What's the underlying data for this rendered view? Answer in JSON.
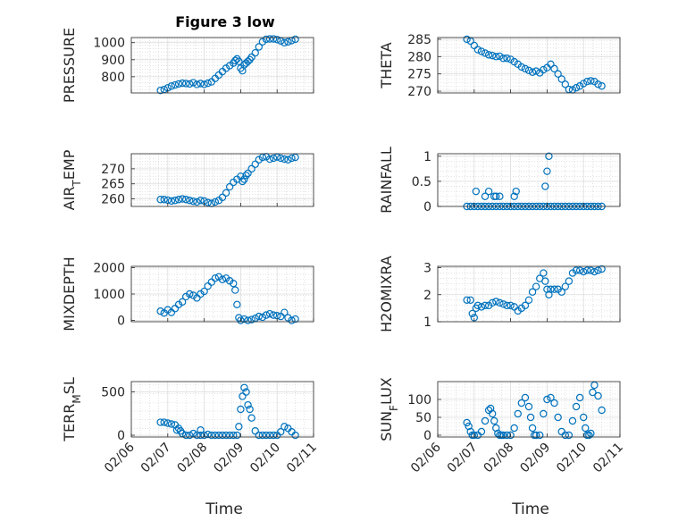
{
  "figure": {
    "title": "Figure 3 low",
    "marker_color": "#0072BD"
  },
  "chart_data": [
    {
      "type": "scatter",
      "id": "pressure",
      "ylabel": "PRESSURE",
      "ylabel_sub": "",
      "ylabel_main": "PRESSURE",
      "ylabel_tail": "",
      "ylim": [
        705,
        1030
      ],
      "yticks": [
        800,
        900,
        1000
      ],
      "ytick_labels": [
        "800",
        "900",
        "1000"
      ],
      "xlim": [
        0,
        5
      ],
      "xticks": [
        0,
        1,
        2,
        3,
        4,
        5
      ],
      "xtick_labels": [
        "02/06",
        "02/07",
        "02/08",
        "02/09",
        "02/10",
        "02/11"
      ],
      "show_xtick_labels": false,
      "x": [
        0.8,
        0.9,
        1.0,
        1.1,
        1.2,
        1.3,
        1.4,
        1.5,
        1.6,
        1.7,
        1.8,
        1.9,
        2.0,
        2.1,
        2.2,
        2.3,
        2.4,
        2.5,
        2.6,
        2.7,
        2.8,
        2.85,
        2.9,
        2.95,
        3.0,
        3.05,
        3.1,
        3.15,
        3.2,
        3.25,
        3.3,
        3.4,
        3.5,
        3.6,
        3.7,
        3.8,
        3.9,
        4.0,
        4.1,
        4.2,
        4.3,
        4.4,
        4.5
      ],
      "y": [
        720,
        725,
        735,
        745,
        752,
        758,
        762,
        760,
        758,
        765,
        755,
        760,
        755,
        762,
        770,
        790,
        810,
        830,
        850,
        865,
        880,
        895,
        905,
        890,
        850,
        835,
        870,
        880,
        890,
        900,
        915,
        940,
        975,
        1005,
        1020,
        1022,
        1022,
        1018,
        1010,
        1000,
        1005,
        1012,
        1020
      ]
    },
    {
      "type": "scatter",
      "id": "theta",
      "ylabel": "THETA",
      "ylabel_main": "THETA",
      "ylabel_sub": "",
      "ylabel_tail": "",
      "ylim": [
        269.5,
        285.5
      ],
      "yticks": [
        270,
        275,
        280,
        285
      ],
      "ytick_labels": [
        "270",
        "275",
        "280",
        "285"
      ],
      "xlim": [
        0,
        5
      ],
      "xticks": [
        0,
        1,
        2,
        3,
        4,
        5
      ],
      "xtick_labels": [
        "02/06",
        "02/07",
        "02/08",
        "02/09",
        "02/10",
        "02/11"
      ],
      "show_xtick_labels": false,
      "x": [
        0.8,
        0.9,
        1.0,
        1.1,
        1.2,
        1.3,
        1.4,
        1.5,
        1.6,
        1.7,
        1.8,
        1.9,
        2.0,
        2.1,
        2.2,
        2.3,
        2.4,
        2.5,
        2.6,
        2.7,
        2.8,
        2.9,
        3.0,
        3.1,
        3.2,
        3.3,
        3.4,
        3.5,
        3.6,
        3.7,
        3.8,
        3.9,
        4.0,
        4.1,
        4.2,
        4.3,
        4.4,
        4.5
      ],
      "y": [
        285,
        284.5,
        283.2,
        282,
        281.5,
        281,
        280.5,
        280.3,
        280,
        280.1,
        279.5,
        279.5,
        279.2,
        278.5,
        277.8,
        277,
        276.5,
        276,
        275.5,
        275.8,
        275.3,
        276.2,
        276.8,
        277.8,
        276.5,
        275,
        273.5,
        272,
        270.5,
        270.4,
        271,
        271.5,
        272.2,
        272.8,
        273,
        272.8,
        272,
        271.5
      ]
    },
    {
      "type": "scatter",
      "id": "airtemp",
      "ylabel": "AIR_TEMP",
      "ylabel_main": "AIR",
      "ylabel_sub": "T",
      "ylabel_tail": "EMP",
      "ylim": [
        257.5,
        275
      ],
      "yticks": [
        260,
        265,
        270
      ],
      "ytick_labels": [
        "260",
        "265",
        "270"
      ],
      "xlim": [
        0,
        5
      ],
      "xticks": [
        0,
        1,
        2,
        3,
        4,
        5
      ],
      "xtick_labels": [
        "02/06",
        "02/07",
        "02/08",
        "02/09",
        "02/10",
        "02/11"
      ],
      "show_xtick_labels": false,
      "x": [
        0.8,
        0.9,
        1.0,
        1.1,
        1.2,
        1.3,
        1.4,
        1.5,
        1.6,
        1.7,
        1.8,
        1.9,
        2.0,
        2.1,
        2.2,
        2.3,
        2.4,
        2.5,
        2.6,
        2.7,
        2.8,
        2.9,
        3.0,
        3.05,
        3.1,
        3.15,
        3.2,
        3.3,
        3.4,
        3.5,
        3.6,
        3.7,
        3.8,
        3.9,
        4.0,
        4.1,
        4.2,
        4.3,
        4.4,
        4.5
      ],
      "y": [
        259.8,
        259.8,
        259.6,
        259.3,
        259.5,
        259.8,
        260,
        259.8,
        259.5,
        259.2,
        259,
        259.5,
        259.3,
        258.8,
        258.5,
        259,
        259.5,
        260.5,
        262,
        264,
        265.5,
        266.5,
        267.5,
        265.8,
        266.5,
        267.8,
        268.5,
        270,
        271.5,
        273,
        273.8,
        274,
        273.2,
        273.5,
        273.9,
        273.5,
        273.2,
        273,
        273.5,
        273.8
      ]
    },
    {
      "type": "scatter",
      "id": "rainfall",
      "ylabel": "RAINFALL",
      "ylabel_main": "RAINFALL",
      "ylabel_sub": "",
      "ylabel_tail": "",
      "ylim": [
        0,
        1.05
      ],
      "yticks": [
        0,
        0.5,
        1
      ],
      "ytick_labels": [
        "0",
        "0.5",
        "1"
      ],
      "xlim": [
        0,
        5
      ],
      "xticks": [
        0,
        1,
        2,
        3,
        4,
        5
      ],
      "xtick_labels": [
        "02/06",
        "02/07",
        "02/08",
        "02/09",
        "02/10",
        "02/11"
      ],
      "show_xtick_labels": false,
      "x": [
        0.8,
        0.9,
        1.0,
        1.1,
        1.2,
        1.3,
        1.4,
        1.5,
        1.6,
        1.7,
        1.8,
        1.9,
        2.0,
        2.1,
        2.2,
        2.3,
        2.4,
        2.5,
        2.6,
        2.7,
        2.8,
        2.9,
        3.0,
        3.1,
        3.2,
        3.3,
        3.4,
        3.5,
        3.6,
        3.7,
        3.8,
        3.9,
        4.0,
        4.1,
        4.2,
        4.3,
        4.4,
        4.5,
        1.05,
        1.3,
        1.4,
        1.55,
        1.6,
        1.7,
        2.1,
        2.15,
        2.95,
        3.0,
        3.05
      ],
      "y": [
        0,
        0,
        0,
        0,
        0,
        0,
        0,
        0,
        0,
        0,
        0,
        0,
        0,
        0,
        0,
        0,
        0,
        0,
        0,
        0,
        0,
        0,
        0,
        0,
        0,
        0,
        0,
        0,
        0,
        0,
        0,
        0,
        0,
        0,
        0,
        0,
        0,
        0,
        0.3,
        0.2,
        0.3,
        0.2,
        0.2,
        0.2,
        0.2,
        0.3,
        0.4,
        0.7,
        1.0
      ]
    },
    {
      "type": "scatter",
      "id": "mixdepth",
      "ylabel": "MIXDEPTH",
      "ylabel_main": "MIXDEPTH",
      "ylabel_sub": "",
      "ylabel_tail": "",
      "ylim": [
        -50,
        2050
      ],
      "yticks": [
        0,
        1000,
        2000
      ],
      "ytick_labels": [
        "0",
        "1000",
        "2000"
      ],
      "xlim": [
        0,
        5
      ],
      "xticks": [
        0,
        1,
        2,
        3,
        4,
        5
      ],
      "xtick_labels": [
        "02/06",
        "02/07",
        "02/08",
        "02/09",
        "02/10",
        "02/11"
      ],
      "show_xtick_labels": false,
      "x": [
        0.8,
        0.9,
        1.0,
        1.1,
        1.2,
        1.3,
        1.4,
        1.5,
        1.6,
        1.7,
        1.8,
        1.9,
        2.0,
        2.1,
        2.2,
        2.3,
        2.4,
        2.5,
        2.6,
        2.7,
        2.8,
        2.85,
        2.9,
        2.95,
        3.0,
        3.1,
        3.2,
        3.3,
        3.4,
        3.5,
        3.6,
        3.7,
        3.8,
        3.9,
        4.0,
        4.1,
        4.2,
        4.3,
        4.4,
        4.5
      ],
      "y": [
        350,
        280,
        400,
        300,
        450,
        600,
        700,
        900,
        1000,
        950,
        850,
        1000,
        1100,
        1300,
        1450,
        1600,
        1650,
        1550,
        1600,
        1500,
        1400,
        1150,
        600,
        100,
        0,
        50,
        0,
        30,
        80,
        150,
        120,
        200,
        250,
        200,
        180,
        150,
        300,
        100,
        0,
        50
      ]
    },
    {
      "type": "scatter",
      "id": "h2omixra",
      "ylabel": "H2OMIXRA",
      "ylabel_main": "H2OMIXRA",
      "ylabel_sub": "",
      "ylabel_tail": "",
      "ylim": [
        1,
        3.05
      ],
      "yticks": [
        1,
        2,
        3
      ],
      "ytick_labels": [
        "1",
        "2",
        "3"
      ],
      "xlim": [
        0,
        5
      ],
      "xticks": [
        0,
        1,
        2,
        3,
        4,
        5
      ],
      "xtick_labels": [
        "02/06",
        "02/07",
        "02/08",
        "02/09",
        "02/10",
        "02/11"
      ],
      "show_xtick_labels": false,
      "x": [
        0.8,
        0.9,
        0.95,
        1.0,
        1.05,
        1.1,
        1.2,
        1.3,
        1.4,
        1.5,
        1.6,
        1.7,
        1.8,
        1.9,
        2.0,
        2.1,
        2.2,
        2.3,
        2.4,
        2.5,
        2.6,
        2.7,
        2.8,
        2.9,
        2.95,
        3.0,
        3.05,
        3.1,
        3.2,
        3.3,
        3.4,
        3.5,
        3.6,
        3.7,
        3.8,
        3.9,
        4.0,
        4.1,
        4.2,
        4.3,
        4.4,
        4.5
      ],
      "y": [
        1.8,
        1.8,
        1.3,
        1.15,
        1.5,
        1.6,
        1.55,
        1.6,
        1.6,
        1.7,
        1.75,
        1.7,
        1.65,
        1.6,
        1.6,
        1.55,
        1.4,
        1.5,
        1.6,
        1.8,
        2.1,
        2.3,
        2.6,
        2.8,
        2.5,
        2.2,
        2.0,
        2.2,
        2.2,
        2.2,
        2.1,
        2.3,
        2.5,
        2.8,
        2.9,
        2.9,
        2.85,
        2.9,
        2.9,
        2.85,
        2.9,
        2.95
      ]
    },
    {
      "type": "scatter",
      "id": "terrmsl",
      "ylabel": "TERR_MSL",
      "ylabel_main": "TERR",
      "ylabel_sub": "M",
      "ylabel_tail": "SL",
      "ylim": [
        -20,
        620
      ],
      "yticks": [
        0,
        500
      ],
      "ytick_labels": [
        "0",
        "500"
      ],
      "xlim": [
        0,
        5
      ],
      "xticks": [
        0,
        1,
        2,
        3,
        4,
        5
      ],
      "xtick_labels": [
        "02/06",
        "02/07",
        "02/08",
        "02/09",
        "02/10",
        "02/11"
      ],
      "show_xtick_labels": true,
      "x": [
        0.8,
        0.9,
        1.0,
        1.1,
        1.2,
        1.3,
        1.4,
        1.5,
        1.6,
        1.7,
        1.8,
        1.9,
        2.0,
        2.1,
        2.2,
        2.3,
        2.4,
        2.5,
        2.6,
        2.7,
        2.8,
        2.9,
        2.95,
        3.0,
        3.05,
        3.1,
        3.15,
        3.2,
        3.25,
        3.3,
        3.4,
        3.5,
        3.6,
        3.7,
        3.8,
        3.9,
        4.0,
        4.1,
        4.2,
        4.3,
        4.4,
        4.5,
        1.25,
        1.35,
        1.9
      ],
      "y": [
        150,
        150,
        140,
        130,
        120,
        80,
        20,
        0,
        0,
        20,
        0,
        0,
        0,
        10,
        0,
        0,
        0,
        0,
        0,
        0,
        0,
        0,
        100,
        300,
        450,
        550,
        500,
        350,
        300,
        200,
        50,
        0,
        0,
        0,
        0,
        0,
        0,
        40,
        100,
        80,
        40,
        0,
        60,
        50,
        60
      ]
    },
    {
      "type": "scatter",
      "id": "sunflux",
      "ylabel": "SUN_FLUX",
      "ylabel_main": "SUN",
      "ylabel_sub": "F",
      "ylabel_tail": "LUX",
      "ylim": [
        -5,
        150
      ],
      "yticks": [
        0,
        50,
        100
      ],
      "ytick_labels": [
        "0",
        "50",
        "100"
      ],
      "xlim": [
        0,
        5
      ],
      "xticks": [
        0,
        1,
        2,
        3,
        4,
        5
      ],
      "xtick_labels": [
        "02/06",
        "02/07",
        "02/08",
        "02/09",
        "02/10",
        "02/11"
      ],
      "show_xtick_labels": true,
      "x": [
        0.8,
        0.85,
        0.9,
        0.95,
        1.0,
        1.1,
        1.2,
        1.3,
        1.4,
        1.45,
        1.5,
        1.55,
        1.6,
        1.65,
        1.7,
        1.75,
        1.8,
        1.9,
        2.0,
        2.1,
        2.2,
        2.3,
        2.4,
        2.5,
        2.55,
        2.6,
        2.65,
        2.7,
        2.8,
        2.9,
        3.0,
        3.1,
        3.2,
        3.3,
        3.4,
        3.5,
        3.6,
        3.7,
        3.8,
        3.9,
        4.0,
        4.05,
        4.1,
        4.15,
        4.2,
        4.25,
        4.3,
        4.4,
        4.5
      ],
      "y": [
        35,
        25,
        10,
        0,
        0,
        0,
        10,
        40,
        70,
        75,
        60,
        40,
        20,
        5,
        0,
        0,
        0,
        0,
        0,
        20,
        60,
        90,
        105,
        80,
        50,
        20,
        0,
        0,
        0,
        60,
        100,
        105,
        90,
        50,
        10,
        0,
        0,
        40,
        80,
        105,
        50,
        20,
        0,
        0,
        5,
        120,
        140,
        110,
        70
      ]
    }
  ],
  "xlabel": "Time"
}
